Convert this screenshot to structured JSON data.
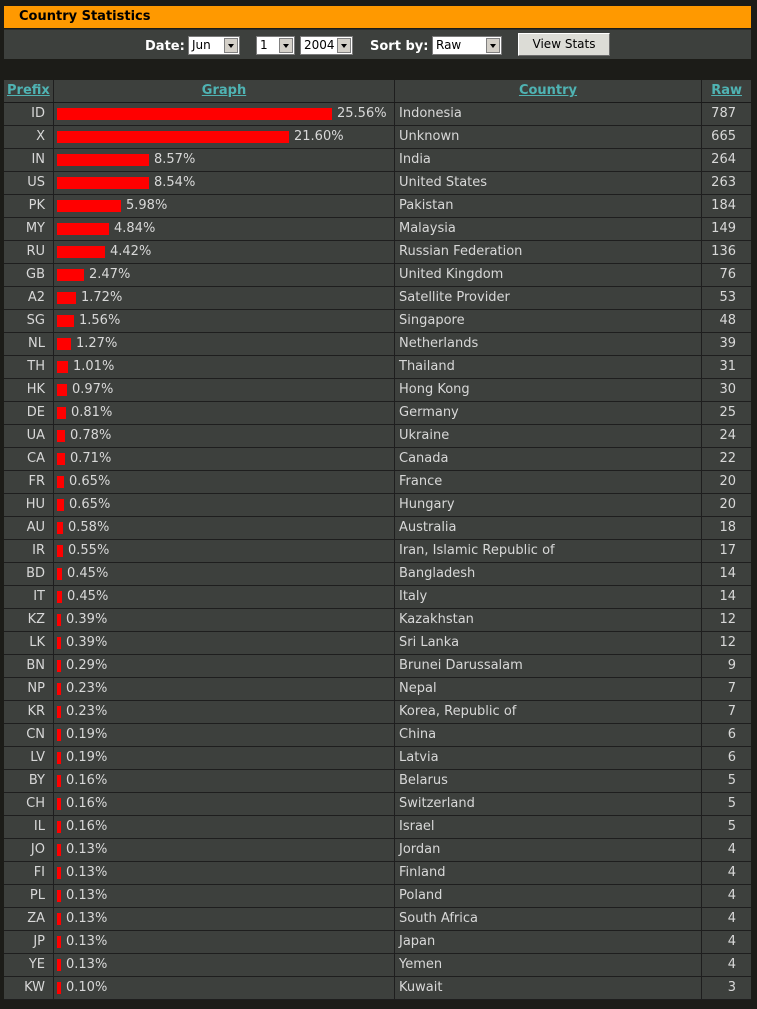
{
  "title": "Country Statistics",
  "controls": {
    "date_label": "Date:",
    "month": "Jun",
    "day": "1",
    "year": "2004",
    "sort_label": "Sort by:",
    "sort": "Raw",
    "view_button": "View Stats"
  },
  "table": {
    "headers": {
      "prefix": "Prefix",
      "graph": "Graph",
      "country": "Country",
      "raw": "Raw"
    },
    "rows": [
      {
        "prefix": "ID",
        "percent": "25.56%",
        "share": 25.56,
        "country": "Indonesia",
        "raw": "787"
      },
      {
        "prefix": "X",
        "percent": "21.60%",
        "share": 21.6,
        "country": "Unknown",
        "raw": "665"
      },
      {
        "prefix": "IN",
        "percent": "8.57%",
        "share": 8.57,
        "country": "India",
        "raw": "264"
      },
      {
        "prefix": "US",
        "percent": "8.54%",
        "share": 8.54,
        "country": "United States",
        "raw": "263"
      },
      {
        "prefix": "PK",
        "percent": "5.98%",
        "share": 5.98,
        "country": "Pakistan",
        "raw": "184"
      },
      {
        "prefix": "MY",
        "percent": "4.84%",
        "share": 4.84,
        "country": "Malaysia",
        "raw": "149"
      },
      {
        "prefix": "RU",
        "percent": "4.42%",
        "share": 4.42,
        "country": "Russian Federation",
        "raw": "136"
      },
      {
        "prefix": "GB",
        "percent": "2.47%",
        "share": 2.47,
        "country": "United Kingdom",
        "raw": "76"
      },
      {
        "prefix": "A2",
        "percent": "1.72%",
        "share": 1.72,
        "country": "Satellite Provider",
        "raw": "53"
      },
      {
        "prefix": "SG",
        "percent": "1.56%",
        "share": 1.56,
        "country": "Singapore",
        "raw": "48"
      },
      {
        "prefix": "NL",
        "percent": "1.27%",
        "share": 1.27,
        "country": "Netherlands",
        "raw": "39"
      },
      {
        "prefix": "TH",
        "percent": "1.01%",
        "share": 1.01,
        "country": "Thailand",
        "raw": "31"
      },
      {
        "prefix": "HK",
        "percent": "0.97%",
        "share": 0.97,
        "country": "Hong Kong",
        "raw": "30"
      },
      {
        "prefix": "DE",
        "percent": "0.81%",
        "share": 0.81,
        "country": "Germany",
        "raw": "25"
      },
      {
        "prefix": "UA",
        "percent": "0.78%",
        "share": 0.78,
        "country": "Ukraine",
        "raw": "24"
      },
      {
        "prefix": "CA",
        "percent": "0.71%",
        "share": 0.71,
        "country": "Canada",
        "raw": "22"
      },
      {
        "prefix": "FR",
        "percent": "0.65%",
        "share": 0.65,
        "country": "France",
        "raw": "20"
      },
      {
        "prefix": "HU",
        "percent": "0.65%",
        "share": 0.65,
        "country": "Hungary",
        "raw": "20"
      },
      {
        "prefix": "AU",
        "percent": "0.58%",
        "share": 0.58,
        "country": "Australia",
        "raw": "18"
      },
      {
        "prefix": "IR",
        "percent": "0.55%",
        "share": 0.55,
        "country": "Iran, Islamic Republic of",
        "raw": "17"
      },
      {
        "prefix": "BD",
        "percent": "0.45%",
        "share": 0.45,
        "country": "Bangladesh",
        "raw": "14"
      },
      {
        "prefix": "IT",
        "percent": "0.45%",
        "share": 0.45,
        "country": "Italy",
        "raw": "14"
      },
      {
        "prefix": "KZ",
        "percent": "0.39%",
        "share": 0.39,
        "country": "Kazakhstan",
        "raw": "12"
      },
      {
        "prefix": "LK",
        "percent": "0.39%",
        "share": 0.39,
        "country": "Sri Lanka",
        "raw": "12"
      },
      {
        "prefix": "BN",
        "percent": "0.29%",
        "share": 0.29,
        "country": "Brunei Darussalam",
        "raw": "9"
      },
      {
        "prefix": "NP",
        "percent": "0.23%",
        "share": 0.23,
        "country": "Nepal",
        "raw": "7"
      },
      {
        "prefix": "KR",
        "percent": "0.23%",
        "share": 0.23,
        "country": "Korea, Republic of",
        "raw": "7"
      },
      {
        "prefix": "CN",
        "percent": "0.19%",
        "share": 0.19,
        "country": "China",
        "raw": "6"
      },
      {
        "prefix": "LV",
        "percent": "0.19%",
        "share": 0.19,
        "country": "Latvia",
        "raw": "6"
      },
      {
        "prefix": "BY",
        "percent": "0.16%",
        "share": 0.16,
        "country": "Belarus",
        "raw": "5"
      },
      {
        "prefix": "CH",
        "percent": "0.16%",
        "share": 0.16,
        "country": "Switzerland",
        "raw": "5"
      },
      {
        "prefix": "IL",
        "percent": "0.16%",
        "share": 0.16,
        "country": "Israel",
        "raw": "5"
      },
      {
        "prefix": "JO",
        "percent": "0.13%",
        "share": 0.13,
        "country": "Jordan",
        "raw": "4"
      },
      {
        "prefix": "FI",
        "percent": "0.13%",
        "share": 0.13,
        "country": "Finland",
        "raw": "4"
      },
      {
        "prefix": "PL",
        "percent": "0.13%",
        "share": 0.13,
        "country": "Poland",
        "raw": "4"
      },
      {
        "prefix": "ZA",
        "percent": "0.13%",
        "share": 0.13,
        "country": "South Africa",
        "raw": "4"
      },
      {
        "prefix": "JP",
        "percent": "0.13%",
        "share": 0.13,
        "country": "Japan",
        "raw": "4"
      },
      {
        "prefix": "YE",
        "percent": "0.13%",
        "share": 0.13,
        "country": "Yemen",
        "raw": "4"
      },
      {
        "prefix": "KW",
        "percent": "0.10%",
        "share": 0.1,
        "country": "Kuwait",
        "raw": "3"
      }
    ]
  },
  "colors": {
    "title_bar": "#ff9900",
    "bar": "#ff0000",
    "header_link": "#4fb3b3"
  }
}
